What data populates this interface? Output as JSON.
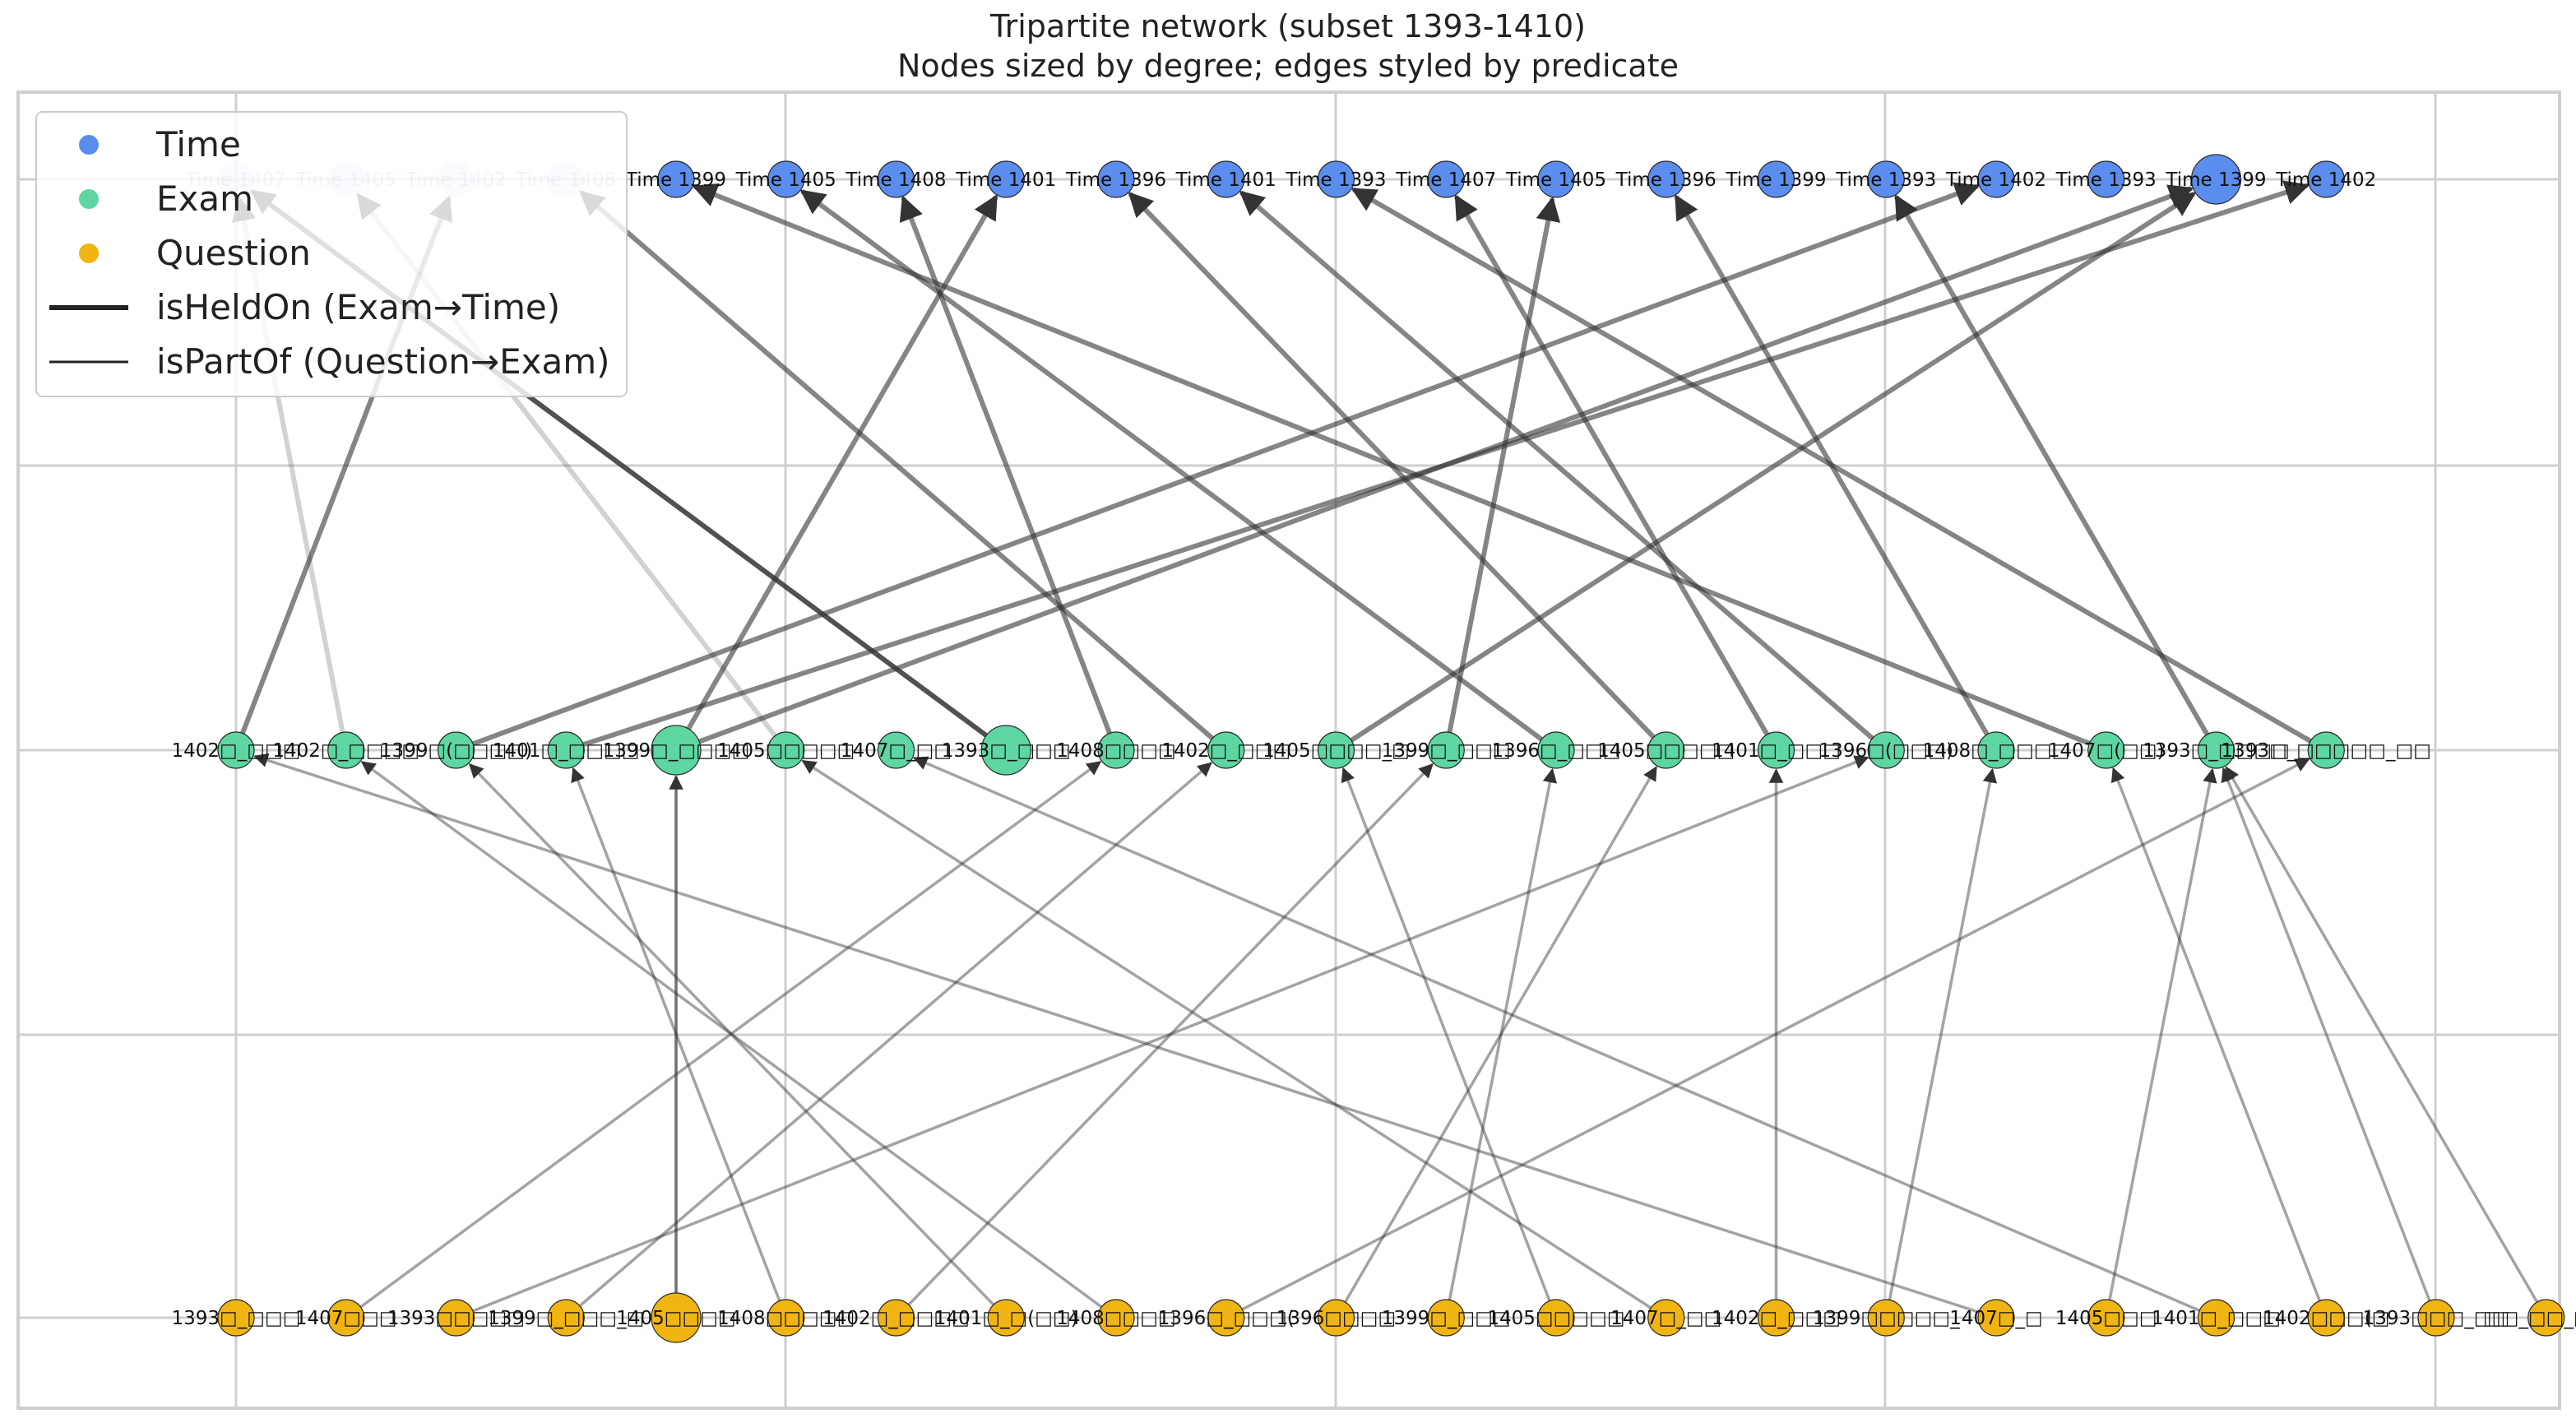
{
  "title": "Tripartite network (subset 1393-1410)",
  "subtitle": "Nodes sized by degree; edges styled by predicate",
  "colors": {
    "time": "#5a8ded",
    "exam": "#5dd6a2",
    "question": "#f0b513",
    "edge": "#333333",
    "grid": "#cfcfcf"
  },
  "legend": [
    {
      "label": "Time",
      "kind": "dot",
      "color": "#5a8ded"
    },
    {
      "label": "Exam",
      "kind": "dot",
      "color": "#5dd6a2"
    },
    {
      "label": "Question",
      "kind": "dot",
      "color": "#f0b513"
    },
    {
      "label": "isHeldOn (Exam→Time)",
      "kind": "line-thick"
    },
    {
      "label": "isPartOf (Question→Exam)",
      "kind": "line-thin"
    }
  ],
  "time_nodes": [
    {
      "label": "Time 1407",
      "faded": true
    },
    {
      "label": "Time 1405",
      "faded": true
    },
    {
      "label": "Time 1402",
      "faded": true
    },
    {
      "label": "Time 1408",
      "faded": true
    },
    {
      "label": "Time 1399"
    },
    {
      "label": "Time 1405"
    },
    {
      "label": "Time 1408"
    },
    {
      "label": "Time 1401"
    },
    {
      "label": "Time 1396"
    },
    {
      "label": "Time 1401"
    },
    {
      "label": "Time 1393"
    },
    {
      "label": "Time 1407"
    },
    {
      "label": "Time 1405"
    },
    {
      "label": "Time 1396"
    },
    {
      "label": "Time 1399"
    },
    {
      "label": "Time 1393"
    },
    {
      "label": "Time 1402"
    },
    {
      "label": "Time 1393"
    },
    {
      "label": "Time 1399",
      "big": true
    },
    {
      "label": "Time 1402"
    }
  ],
  "exam_nodes": [
    {
      "label": "1402□_□□□"
    },
    {
      "label": "1402□_□□□□"
    },
    {
      "label": "1399□(□□□□)"
    },
    {
      "label": "1401□_□□□□"
    },
    {
      "label": "1399□_□□□□",
      "big": true
    },
    {
      "label": "1405□□□□□"
    },
    {
      "label": "1407□_□□"
    },
    {
      "label": "1393□_□□□",
      "big": true
    },
    {
      "label": "1408□□□□"
    },
    {
      "label": "1402□_□□□"
    },
    {
      "label": "1405□□□□_□"
    },
    {
      "label": "1399□_□□□"
    },
    {
      "label": "1396□_□□□"
    },
    {
      "label": "1405□□□□□"
    },
    {
      "label": "1401□_□□□"
    },
    {
      "label": "1396□(□□□)"
    },
    {
      "label": "1408□_□□□□"
    },
    {
      "label": "1407□(□□)"
    },
    {
      "label": "1393□_□□□□"
    },
    {
      "label": "1393□_□□□□□_□□"
    }
  ],
  "question_nodes": [
    {
      "label": "1393□_□□□"
    },
    {
      "label": "1407□□□"
    },
    {
      "label": "1393□□□□□"
    },
    {
      "label": "1399□_□□□_□"
    },
    {
      "label": "1405□□□□",
      "big": true
    },
    {
      "label": "1408□□□□□"
    },
    {
      "label": "1402□_□□□□"
    },
    {
      "label": "1401□_□(□□)"
    },
    {
      "label": "1408□□□□"
    },
    {
      "label": "1396□_□□□("
    },
    {
      "label": "1396□□□□"
    },
    {
      "label": "1399□_□□□"
    },
    {
      "label": "1405□□□□□"
    },
    {
      "label": "1407□_□□"
    },
    {
      "label": "1402□_□□□"
    },
    {
      "label": "1399□□□□□_"
    },
    {
      "label": "1407□_□"
    },
    {
      "label": "1405□□□"
    },
    {
      "label": "1401□_□□□"
    },
    {
      "label": "1402□□□(□"
    },
    {
      "label": "1393□□□_□□"
    },
    {
      "label": "□□_□□_□□"
    }
  ],
  "held_on_edges": [
    {
      "from": 0,
      "to": 2
    },
    {
      "from": 1,
      "to": 0,
      "faded": true
    },
    {
      "from": 2,
      "to": 16
    },
    {
      "from": 3,
      "to": 19
    },
    {
      "from": 4,
      "to": 7
    },
    {
      "from": 4,
      "to": 18
    },
    {
      "from": 5,
      "to": 1,
      "faded": true
    },
    {
      "from": 7,
      "to": 0,
      "strong": true
    },
    {
      "from": 8,
      "to": 6
    },
    {
      "from": 9,
      "to": 3
    },
    {
      "from": 10,
      "to": 18
    },
    {
      "from": 11,
      "to": 12
    },
    {
      "from": 12,
      "to": 5
    },
    {
      "from": 13,
      "to": 8
    },
    {
      "from": 14,
      "to": 11
    },
    {
      "from": 15,
      "to": 9
    },
    {
      "from": 16,
      "to": 13
    },
    {
      "from": 17,
      "to": 4
    },
    {
      "from": 18,
      "to": 15
    },
    {
      "from": 19,
      "to": 10
    }
  ],
  "part_of_edges": [
    {
      "from": 1,
      "to": 8
    },
    {
      "from": 2,
      "to": 15
    },
    {
      "from": 3,
      "to": 9
    },
    {
      "from": 4,
      "to": 4,
      "strong": true
    },
    {
      "from": 5,
      "to": 3
    },
    {
      "from": 6,
      "to": 11
    },
    {
      "from": 7,
      "to": 2
    },
    {
      "from": 8,
      "to": 1
    },
    {
      "from": 9,
      "to": 19
    },
    {
      "from": 10,
      "to": 13
    },
    {
      "from": 11,
      "to": 12
    },
    {
      "from": 12,
      "to": 10
    },
    {
      "from": 13,
      "to": 5
    },
    {
      "from": 14,
      "to": 14
    },
    {
      "from": 15,
      "to": 16
    },
    {
      "from": 16,
      "to": 0
    },
    {
      "from": 17,
      "to": 18
    },
    {
      "from": 18,
      "to": 6
    },
    {
      "from": 19,
      "to": 17
    },
    {
      "from": 20,
      "to": 18
    },
    {
      "from": 21,
      "to": 18
    }
  ]
}
